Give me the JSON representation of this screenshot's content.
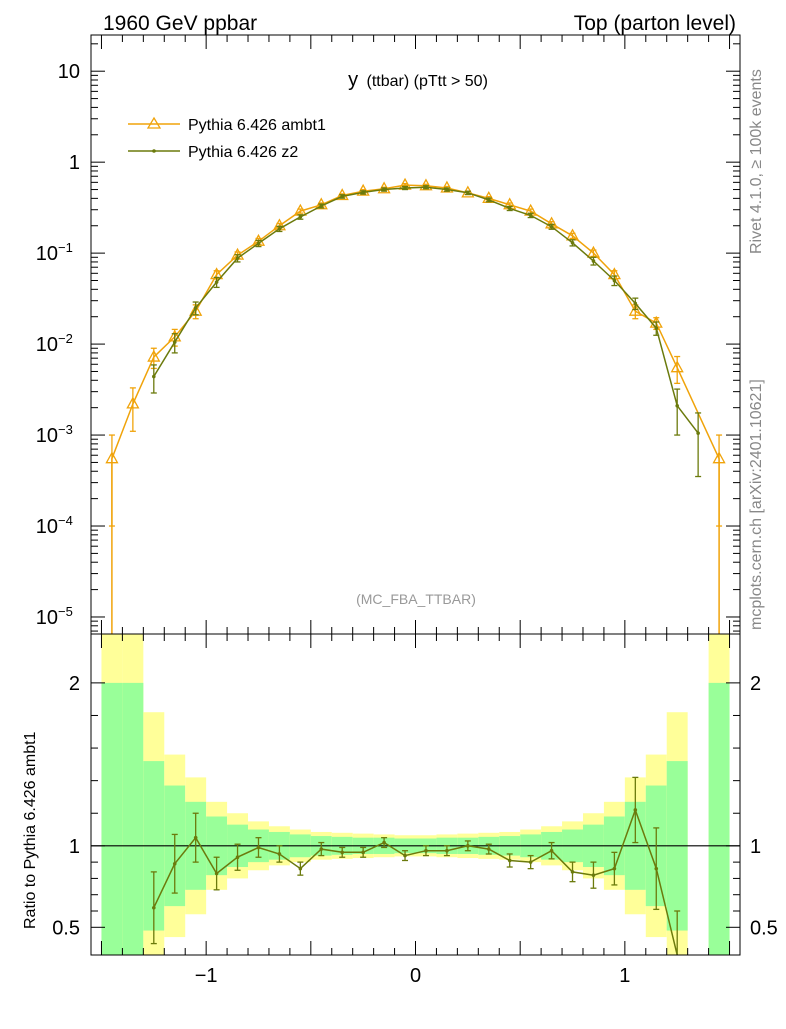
{
  "header": {
    "left": "1960 GeV ppbar",
    "right": "Top (parton level)"
  },
  "side_labels": {
    "rivet": "Rivet 4.1.0, ≥ 100k events",
    "mcplots": "mcplots.cern.ch [arXiv:2401.10621]"
  },
  "colors": {
    "ambt1": "#f0a30a",
    "z2": "#6b7a0c",
    "band_inner": "#99ff99",
    "band_outer": "#ffff99"
  },
  "chart_data": [
    {
      "type": "line",
      "title": "y (ttbar) (pTtt > 50)",
      "title_main": "y",
      "title_sub": "(ttbar) (pTtt > 50)",
      "watermark": "(MC_FBA_TTBAR)",
      "yscale": "log",
      "ylim": [
        6.5e-06,
        25
      ],
      "xlim": [
        -1.55,
        1.55
      ],
      "yticks": [
        {
          "value": 10,
          "label": "10"
        },
        {
          "value": 1,
          "label": "1"
        },
        {
          "value": 0.1,
          "label": "10",
          "exp": "−1"
        },
        {
          "value": 0.01,
          "label": "10",
          "exp": "−2"
        },
        {
          "value": 0.001,
          "label": "10",
          "exp": "−3"
        },
        {
          "value": 0.0001,
          "label": "10",
          "exp": "−4"
        },
        {
          "value": 1e-05,
          "label": "10",
          "exp": "−5"
        }
      ],
      "x": [
        -1.45,
        -1.35,
        -1.25,
        -1.15,
        -1.05,
        -0.95,
        -0.85,
        -0.75,
        -0.65,
        -0.55,
        -0.45,
        -0.35,
        -0.25,
        -0.15,
        -0.05,
        0.05,
        0.15,
        0.25,
        0.35,
        0.45,
        0.55,
        0.65,
        0.75,
        0.85,
        0.95,
        1.05,
        1.15,
        1.25,
        1.35,
        1.45
      ],
      "series": [
        {
          "name": "Pythia 6.426 ambt1",
          "marker": "triangle",
          "values": [
            0.00055,
            0.0022,
            0.0072,
            0.012,
            0.023,
            0.058,
            0.095,
            0.135,
            0.2,
            0.29,
            0.34,
            0.43,
            0.48,
            0.51,
            0.56,
            0.55,
            0.52,
            0.46,
            0.4,
            0.34,
            0.29,
            0.21,
            0.155,
            0.1,
            0.058,
            0.023,
            0.017,
            0.0055,
            0.0,
            0.00055
          ],
          "errors": [
            0.00045,
            0.0011,
            0.0018,
            0.0025,
            0.004,
            0.006,
            0.008,
            0.01,
            0.012,
            0.015,
            0.016,
            0.018,
            0.019,
            0.02,
            0.021,
            0.021,
            0.02,
            0.019,
            0.018,
            0.016,
            0.015,
            0.012,
            0.01,
            0.008,
            0.006,
            0.004,
            0.0025,
            0.0018,
            0.0,
            0.00045
          ]
        },
        {
          "name": "Pythia 6.426 z2",
          "marker": "dot",
          "values": [
            0.0,
            0.0,
            0.0044,
            0.0105,
            0.025,
            0.048,
            0.088,
            0.128,
            0.185,
            0.25,
            0.33,
            0.42,
            0.465,
            0.5,
            0.52,
            0.53,
            0.5,
            0.46,
            0.385,
            0.31,
            0.26,
            0.195,
            0.13,
            0.082,
            0.05,
            0.028,
            0.015,
            0.0021,
            0.00105,
            0.0
          ],
          "errors": [
            0.0,
            0.0,
            0.0015,
            0.0025,
            0.004,
            0.006,
            0.008,
            0.01,
            0.012,
            0.014,
            0.016,
            0.018,
            0.019,
            0.02,
            0.02,
            0.02,
            0.02,
            0.019,
            0.018,
            0.016,
            0.014,
            0.012,
            0.01,
            0.008,
            0.006,
            0.004,
            0.0025,
            0.0011,
            0.0007,
            0.0
          ]
        }
      ]
    },
    {
      "type": "line",
      "ylabel": "Ratio to Pythia 6.426 ambt1",
      "ylim": [
        0.33,
        2.3
      ],
      "xlim": [
        -1.55,
        1.55
      ],
      "yticks": [
        {
          "value": 2,
          "label": "2"
        },
        {
          "value": 1,
          "label": "1"
        },
        {
          "value": 0.5,
          "label": "0.5"
        }
      ],
      "xticks": [
        {
          "value": -1,
          "label": "−1"
        },
        {
          "value": 0,
          "label": "0"
        },
        {
          "value": 1,
          "label": "1"
        }
      ],
      "reference": 1,
      "bins": [
        -1.5,
        -1.4,
        -1.3,
        -1.2,
        -1.1,
        -1.0,
        -0.9,
        -0.8,
        -0.7,
        -0.6,
        -0.5,
        -0.4,
        -0.3,
        -0.2,
        -0.1,
        0.0,
        0.1,
        0.2,
        0.3,
        0.4,
        0.5,
        0.6,
        0.7,
        0.8,
        0.9,
        1.0,
        1.1,
        1.2,
        1.3,
        1.4,
        1.5
      ],
      "band_inner": [
        1.0,
        1.0,
        0.52,
        0.37,
        0.27,
        0.18,
        0.13,
        0.1,
        0.085,
        0.07,
        0.06,
        0.055,
        0.05,
        0.05,
        0.045,
        0.045,
        0.05,
        0.05,
        0.055,
        0.06,
        0.07,
        0.085,
        0.1,
        0.13,
        0.18,
        0.27,
        0.37,
        0.52,
        0.0,
        1.0
      ],
      "band_outer": [
        1.5,
        1.5,
        0.82,
        0.56,
        0.42,
        0.27,
        0.2,
        0.15,
        0.12,
        0.1,
        0.085,
        0.08,
        0.075,
        0.07,
        0.065,
        0.065,
        0.07,
        0.075,
        0.08,
        0.085,
        0.1,
        0.12,
        0.15,
        0.2,
        0.27,
        0.42,
        0.56,
        0.82,
        0.0,
        1.5
      ],
      "series": [
        {
          "name": "Pythia 6.426 z2",
          "x": [
            -1.25,
            -1.15,
            -1.05,
            -0.95,
            -0.85,
            -0.75,
            -0.65,
            -0.55,
            -0.45,
            -0.35,
            -0.25,
            -0.15,
            -0.05,
            0.05,
            0.15,
            0.25,
            0.35,
            0.45,
            0.55,
            0.65,
            0.75,
            0.85,
            0.95,
            1.05,
            1.15,
            1.25
          ],
          "values": [
            0.62,
            0.89,
            1.05,
            0.83,
            0.93,
            0.99,
            0.95,
            0.86,
            0.98,
            0.96,
            0.96,
            1.02,
            0.94,
            0.97,
            0.97,
            1.0,
            0.98,
            0.91,
            0.9,
            0.97,
            0.84,
            0.82,
            0.86,
            1.22,
            0.86,
            0.3
          ],
          "errors": [
            0.22,
            0.18,
            0.15,
            0.1,
            0.08,
            0.06,
            0.05,
            0.04,
            0.04,
            0.03,
            0.03,
            0.03,
            0.03,
            0.03,
            0.03,
            0.03,
            0.03,
            0.04,
            0.04,
            0.05,
            0.06,
            0.08,
            0.1,
            0.2,
            0.25,
            0.3
          ]
        }
      ]
    }
  ]
}
